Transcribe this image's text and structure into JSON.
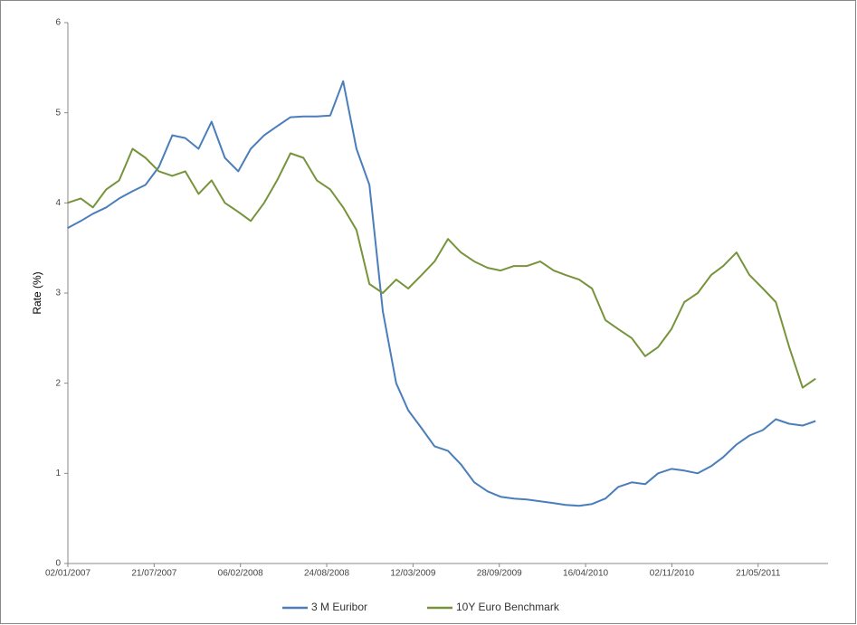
{
  "chart_data": {
    "type": "line",
    "y_label": "Rate (%)",
    "x": [
      "01/01/2007",
      "01/02/2007",
      "01/03/2007",
      "01/04/2007",
      "01/05/2007",
      "01/06/2007",
      "01/07/2007",
      "01/08/2007",
      "01/09/2007",
      "01/10/2007",
      "01/11/2007",
      "01/12/2007",
      "01/01/2008",
      "01/02/2008",
      "01/03/2008",
      "01/04/2008",
      "01/05/2008",
      "01/06/2008",
      "01/07/2008",
      "01/08/2008",
      "01/09/2008",
      "01/10/2008",
      "01/11/2008",
      "01/12/2008",
      "01/01/2009",
      "01/02/2009",
      "01/03/2009",
      "01/04/2009",
      "01/05/2009",
      "01/06/2009",
      "01/07/2009",
      "01/08/2009",
      "01/09/2009",
      "01/10/2009",
      "01/11/2009",
      "01/12/2009",
      "01/01/2010",
      "01/02/2010",
      "01/03/2010",
      "01/04/2010",
      "01/05/2010",
      "01/06/2010",
      "01/07/2010",
      "01/08/2010",
      "01/09/2010",
      "01/10/2010",
      "01/11/2010",
      "01/12/2010",
      "01/01/2011",
      "01/02/2011",
      "01/03/2011",
      "01/04/2011",
      "01/05/2011",
      "01/06/2011",
      "01/07/2011",
      "01/08/2011",
      "01/09/2011",
      "01/10/2011"
    ],
    "series": [
      {
        "name": "3 M Euribor",
        "color": "#4a7ebb",
        "values": [
          3.72,
          3.8,
          3.88,
          3.95,
          4.05,
          4.13,
          4.2,
          4.4,
          4.75,
          4.72,
          4.6,
          4.9,
          4.5,
          4.35,
          4.6,
          4.75,
          4.85,
          4.95,
          4.96,
          4.96,
          4.97,
          5.35,
          4.6,
          4.2,
          2.8,
          2.0,
          1.7,
          1.5,
          1.3,
          1.25,
          1.1,
          0.9,
          0.8,
          0.74,
          0.72,
          0.71,
          0.69,
          0.67,
          0.65,
          0.64,
          0.66,
          0.72,
          0.85,
          0.9,
          0.88,
          1.0,
          1.05,
          1.03,
          1.0,
          1.08,
          1.18,
          1.32,
          1.42,
          1.48,
          1.6,
          1.55,
          1.53,
          1.58
        ]
      },
      {
        "name": "10Y Euro Benchmark",
        "color": "#77933c",
        "values": [
          4.0,
          4.05,
          3.95,
          4.15,
          4.25,
          4.6,
          4.5,
          4.35,
          4.3,
          4.35,
          4.1,
          4.25,
          4.0,
          3.9,
          3.8,
          4.0,
          4.25,
          4.55,
          4.5,
          4.25,
          4.15,
          3.95,
          3.7,
          3.1,
          3.0,
          3.15,
          3.05,
          3.2,
          3.35,
          3.6,
          3.45,
          3.35,
          3.28,
          3.25,
          3.3,
          3.3,
          3.35,
          3.25,
          3.2,
          3.15,
          3.05,
          2.7,
          2.6,
          2.5,
          2.3,
          2.4,
          2.6,
          2.9,
          3.0,
          3.2,
          3.3,
          3.45,
          3.2,
          3.05,
          2.9,
          2.4,
          1.95,
          2.05
        ]
      }
    ],
    "xlim": [
      "02/01/2007",
      "30/10/2011"
    ],
    "xticks": [
      "02/01/2007",
      "21/07/2007",
      "06/02/2008",
      "24/08/2008",
      "12/03/2009",
      "28/09/2009",
      "16/04/2010",
      "02/11/2010",
      "21/05/2011"
    ],
    "ylim": [
      0,
      6
    ],
    "yticks": [
      0,
      1,
      2,
      3,
      4,
      5,
      6
    ],
    "legend": "bottom"
  }
}
